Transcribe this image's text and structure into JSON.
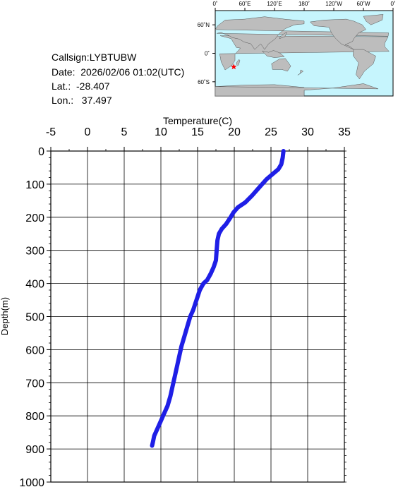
{
  "station": {
    "callsign": "Callsign:LYBTUBW",
    "date": "Date:  2026/02/06 01:02(UTC)",
    "lat": "Lat.:  -28.407",
    "lon": "Lon.:   37.497"
  },
  "map": {
    "top_labels": [
      "0˚",
      "60˚E",
      "120˚E",
      "180˚",
      "120˚W",
      "60˚W",
      "0˚"
    ],
    "left_labels": [
      "60˚N",
      "0˚",
      "60˚S"
    ],
    "marker": {
      "lat": -28.407,
      "lon": 37.497
    },
    "colors": {
      "ocean": "#c6f5fd",
      "land": "#bdbdbd",
      "marker": "#ff0000"
    }
  },
  "chart_data": {
    "type": "line",
    "xlabel": "Temperature(C)",
    "ylabel": "Depth(m)",
    "xlim": [
      -5,
      35
    ],
    "ylim": [
      1000,
      0
    ],
    "xticks": [
      "-5",
      "0",
      "5",
      "10",
      "15",
      "20",
      "25",
      "30",
      "35"
    ],
    "yticks": [
      "0",
      "100",
      "200",
      "300",
      "400",
      "500",
      "600",
      "700",
      "800",
      "900",
      "1000"
    ],
    "grid": true,
    "line_color": "#1f1fe6",
    "series": [
      {
        "x": [
          26.7,
          26.6,
          26.4,
          26.0,
          25.2,
          24.4,
          23.8,
          23.2,
          22.4,
          21.5,
          20.5,
          19.9,
          19.5,
          18.9,
          18.3,
          17.9,
          17.7,
          17.6,
          17.5,
          17.2,
          16.8,
          16.3,
          15.8,
          15.3,
          15.0,
          14.7,
          14.4,
          14.0,
          13.6,
          13.2,
          12.8,
          12.5,
          12.2,
          11.9,
          11.6,
          11.3,
          10.9,
          10.3,
          9.9,
          9.5,
          9.1,
          8.9,
          8.8
        ],
        "y": [
          0,
          20,
          40,
          55,
          70,
          85,
          100,
          115,
          135,
          155,
          170,
          185,
          200,
          220,
          235,
          250,
          270,
          300,
          330,
          350,
          370,
          390,
          400,
          420,
          440,
          460,
          480,
          500,
          530,
          560,
          590,
          620,
          650,
          680,
          710,
          740,
          770,
          800,
          820,
          840,
          860,
          880,
          890
        ]
      }
    ]
  }
}
